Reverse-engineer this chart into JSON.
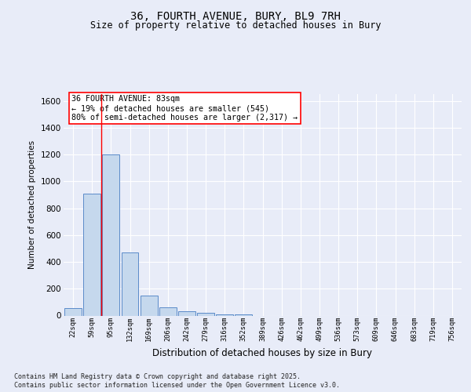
{
  "title_line1": "36, FOURTH AVENUE, BURY, BL9 7RH",
  "title_line2": "Size of property relative to detached houses in Bury",
  "xlabel": "Distribution of detached houses by size in Bury",
  "ylabel": "Number of detached properties",
  "categories": [
    "22sqm",
    "59sqm",
    "95sqm",
    "132sqm",
    "169sqm",
    "206sqm",
    "242sqm",
    "279sqm",
    "316sqm",
    "352sqm",
    "389sqm",
    "426sqm",
    "462sqm",
    "499sqm",
    "536sqm",
    "573sqm",
    "609sqm",
    "646sqm",
    "683sqm",
    "719sqm",
    "756sqm"
  ],
  "values": [
    55,
    910,
    1200,
    470,
    150,
    60,
    35,
    20,
    10,
    10,
    0,
    0,
    0,
    0,
    0,
    0,
    0,
    0,
    0,
    0,
    0
  ],
  "bar_color": "#c5d8ed",
  "bar_edge_color": "#5b8bc9",
  "annotation_text": "36 FOURTH AVENUE: 83sqm\n← 19% of detached houses are smaller (545)\n80% of semi-detached houses are larger (2,317) →",
  "vline_x": 1.5,
  "ylim": [
    0,
    1650
  ],
  "yticks": [
    0,
    200,
    400,
    600,
    800,
    1000,
    1200,
    1400,
    1600
  ],
  "footer_line1": "Contains HM Land Registry data © Crown copyright and database right 2025.",
  "footer_line2": "Contains public sector information licensed under the Open Government Licence v3.0.",
  "bg_color": "#e8ecf8",
  "plot_bg_color": "#e8ecf8",
  "grid_color": "#ffffff"
}
